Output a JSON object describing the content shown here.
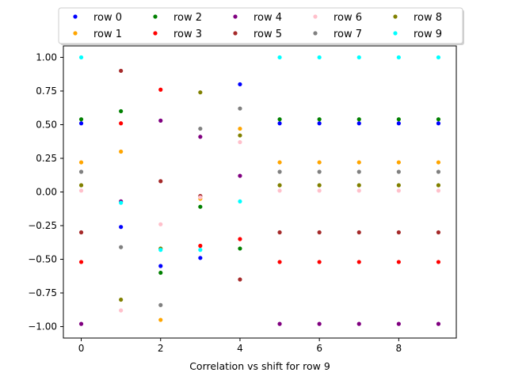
{
  "chart_data": {
    "type": "scatter",
    "xlabel": "Correlation vs shift for row 9",
    "ylabel": "",
    "xlim": [
      -0.45,
      9.45
    ],
    "ylim": [
      -1.085,
      1.085
    ],
    "xticks": [
      0,
      2,
      4,
      6,
      8
    ],
    "yticks": [
      1.0,
      0.75,
      0.5,
      0.25,
      0.0,
      -0.25,
      -0.5,
      -0.75,
      -1.0
    ],
    "ytick_labels": [
      "1.00",
      "0.75",
      "0.50",
      "0.25",
      "0.00",
      "−0.25",
      "−0.50",
      "−0.75",
      "−1.00"
    ],
    "xtick_labels": [
      "0",
      "2",
      "4",
      "6",
      "8"
    ],
    "legend_position": "top-center",
    "legend_columns": 5,
    "grid": false,
    "x": [
      0,
      1,
      2,
      3,
      4,
      5,
      6,
      7,
      8,
      9
    ],
    "series": [
      {
        "name": "row 0",
        "color": "#0000ff",
        "values": [
          0.51,
          -0.26,
          -0.55,
          -0.49,
          0.8,
          0.51,
          0.51,
          0.51,
          0.51,
          0.51
        ]
      },
      {
        "name": "row 1",
        "color": "#ffa500",
        "values": [
          0.22,
          0.3,
          -0.95,
          -0.05,
          0.47,
          0.22,
          0.22,
          0.22,
          0.22,
          0.22
        ]
      },
      {
        "name": "row 2",
        "color": "#008000",
        "values": [
          0.54,
          0.6,
          -0.6,
          -0.11,
          -0.42,
          0.54,
          0.54,
          0.54,
          0.54,
          0.54
        ]
      },
      {
        "name": "row 3",
        "color": "#ff0000",
        "values": [
          -0.52,
          0.51,
          0.76,
          -0.4,
          -0.35,
          -0.52,
          -0.52,
          -0.52,
          -0.52,
          -0.52
        ]
      },
      {
        "name": "row 4",
        "color": "#800080",
        "values": [
          -0.98,
          -0.07,
          0.53,
          0.41,
          0.12,
          -0.98,
          -0.98,
          -0.98,
          -0.98,
          -0.98
        ]
      },
      {
        "name": "row 5",
        "color": "#a52a2a",
        "values": [
          -0.3,
          0.9,
          0.08,
          -0.03,
          -0.65,
          -0.3,
          -0.3,
          -0.3,
          -0.3,
          -0.3
        ]
      },
      {
        "name": "row 6",
        "color": "#ffc0cb",
        "values": [
          0.01,
          -0.88,
          -0.24,
          -0.04,
          0.37,
          0.01,
          0.01,
          0.01,
          0.01,
          0.01
        ]
      },
      {
        "name": "row 7",
        "color": "#808080",
        "values": [
          0.15,
          -0.41,
          -0.84,
          0.47,
          0.62,
          0.15,
          0.15,
          0.15,
          0.15,
          0.15
        ]
      },
      {
        "name": "row 8",
        "color": "#808000",
        "values": [
          0.05,
          -0.8,
          -0.42,
          0.74,
          0.42,
          0.05,
          0.05,
          0.05,
          0.05,
          0.05
        ]
      },
      {
        "name": "row 9",
        "color": "#00ffff",
        "values": [
          1.0,
          -0.08,
          -0.43,
          -0.43,
          -0.07,
          1.0,
          1.0,
          1.0,
          1.0,
          1.0
        ]
      }
    ]
  }
}
